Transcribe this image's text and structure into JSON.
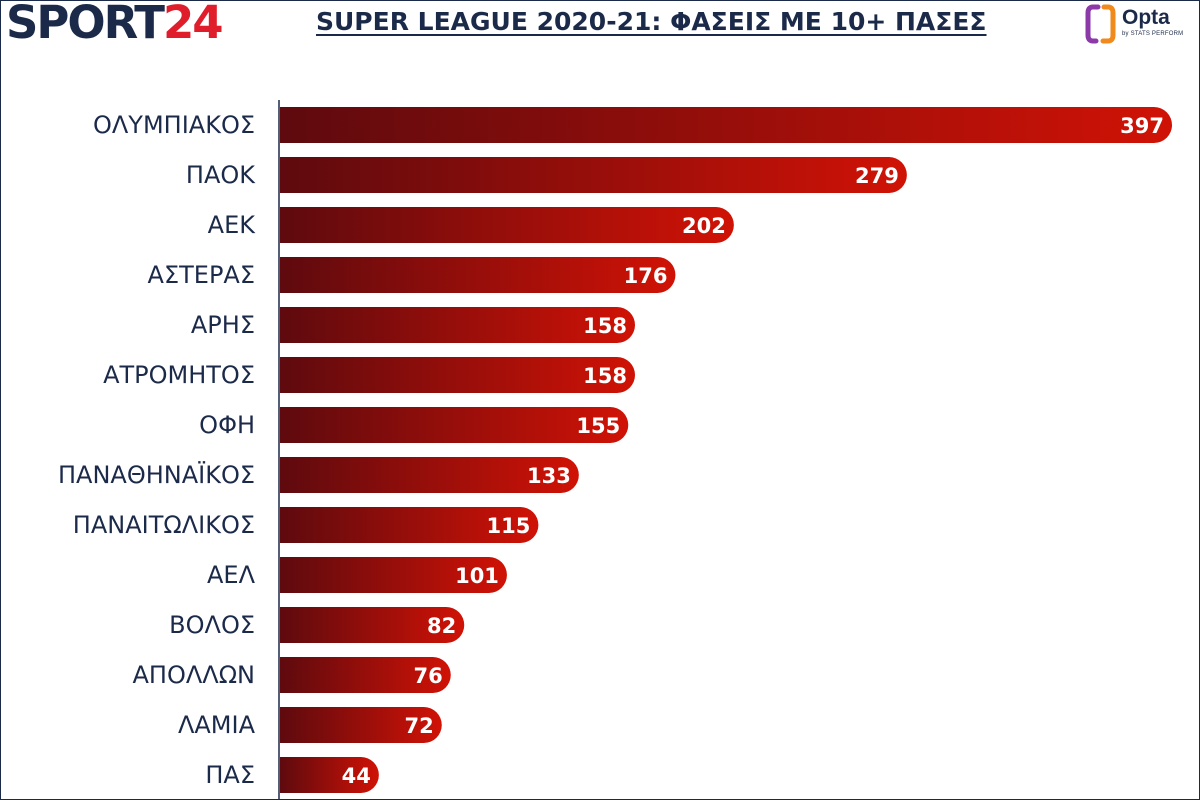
{
  "brand": {
    "part1": "SPORT",
    "part2": "24"
  },
  "provider": {
    "name": "Opta",
    "sub": "by STATS PERFORM"
  },
  "chart_data": {
    "type": "bar",
    "orientation": "horizontal",
    "title": "SUPER LEAGUE 2020-21: ΦΑΣΕΙΣ ΜΕ 10+ ΠΑΣΕΣ",
    "categories": [
      "ΟΛΥΜΠΙΑΚΟΣ",
      "ΠΑΟΚ",
      "ΑΕΚ",
      "ΑΣΤΕΡΑΣ",
      "ΑΡΗΣ",
      "ΑΤΡΟΜΗΤΟΣ",
      "ΟΦΗ",
      "ΠΑΝΑΘΗΝΑΪΚΟΣ",
      "ΠΑΝΑΙΤΩΛΙΚΟΣ",
      "ΑΕΛ",
      "ΒΟΛΟΣ",
      "ΑΠΟΛΛΩΝ",
      "ΛΑΜΙΑ",
      "ΠΑΣ"
    ],
    "values": [
      397,
      279,
      202,
      176,
      158,
      158,
      155,
      133,
      115,
      101,
      82,
      76,
      72,
      44
    ],
    "xlim": [
      0,
      397
    ],
    "grid": false,
    "legend": "none",
    "colors": {
      "bar_start": "#5e0a0e",
      "bar_end": "#d01206",
      "text": "#1c2a4a",
      "value_text": "#ffffff"
    }
  }
}
